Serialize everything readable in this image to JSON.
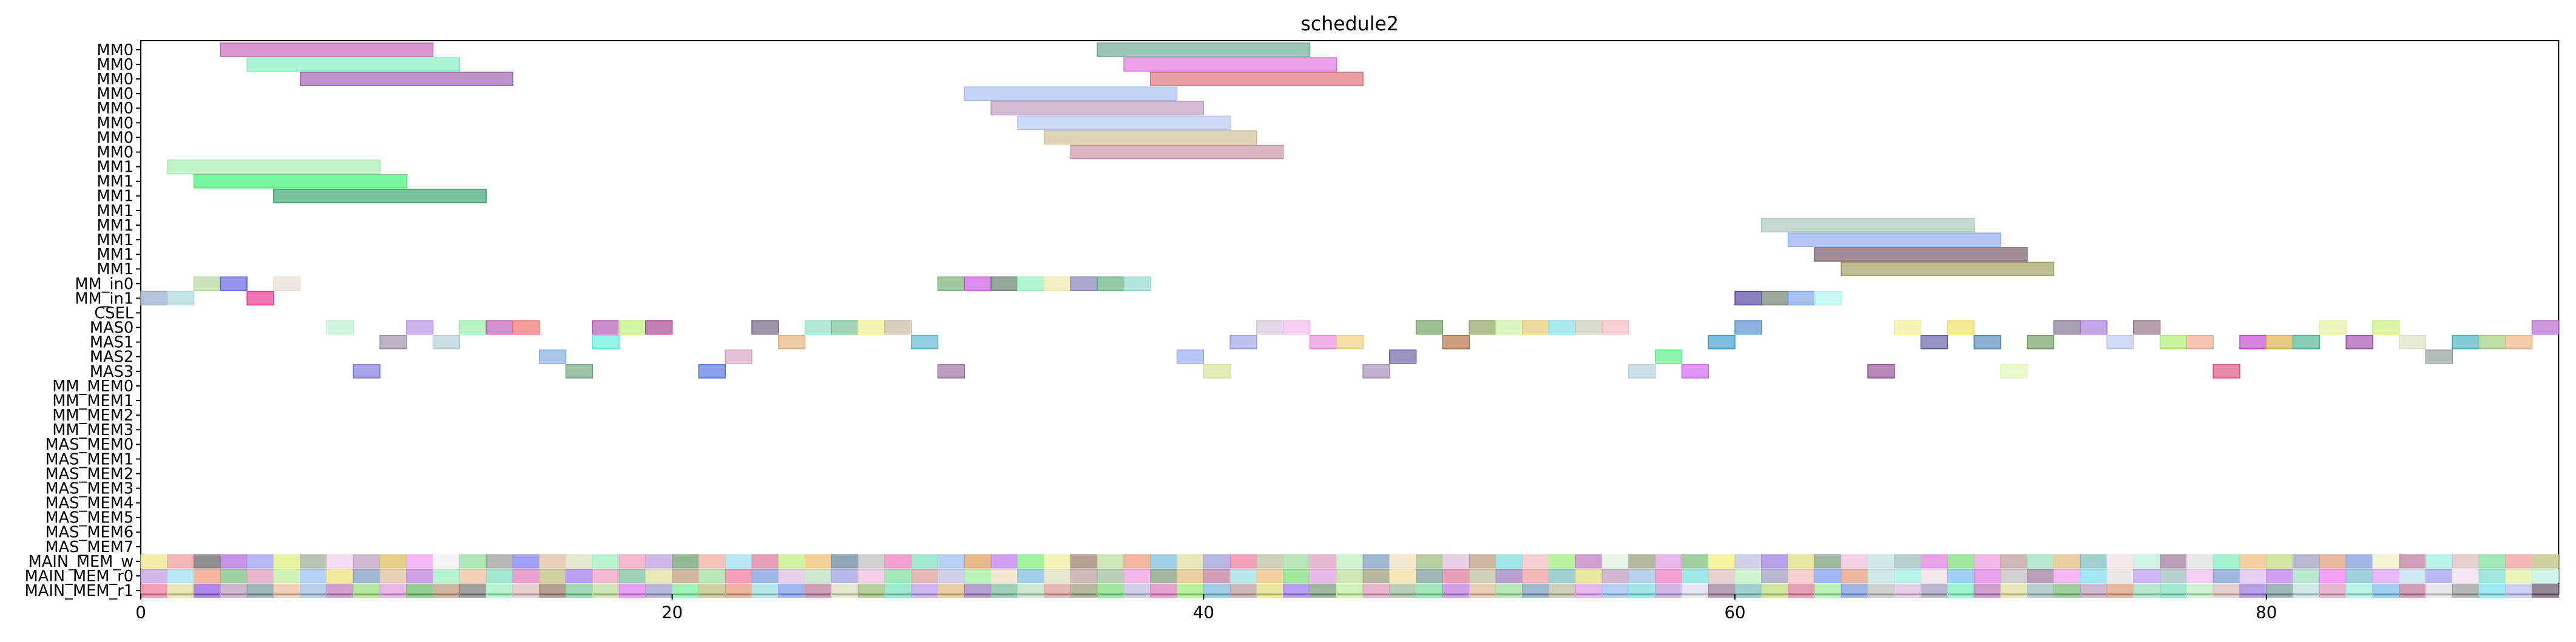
{
  "chart_data": {
    "type": "gantt",
    "title": "schedule2",
    "xlabel": "",
    "ylabel": "",
    "xlim": [
      0,
      91
    ],
    "xticks": [
      0,
      20,
      40,
      60,
      80
    ],
    "grid": false,
    "rows": [
      "MM0",
      "MM0",
      "MM0",
      "MM0",
      "MM0",
      "MM0",
      "MM0",
      "MM0",
      "MM1",
      "MM1",
      "MM1",
      "MM1",
      "MM1",
      "MM1",
      "MM1",
      "MM1",
      "MM_in0",
      "MM_in1",
      "CSEL",
      "MAS0",
      "MAS1",
      "MAS2",
      "MAS3",
      "MM_MEM0",
      "MM_MEM1",
      "MM_MEM2",
      "MM_MEM3",
      "MAS_MEM0",
      "MAS_MEM1",
      "MAS_MEM2",
      "MAS_MEM3",
      "MAS_MEM4",
      "MAS_MEM5",
      "MAS_MEM6",
      "MAS_MEM7",
      "MAIN_MEM_w",
      "MAIN_MEM_r0",
      "MAIN_MEM_r1"
    ],
    "tasks": [
      {
        "row": 0,
        "start": 3,
        "end": 11,
        "color": "#c25fb6"
      },
      {
        "row": 1,
        "start": 4,
        "end": 12,
        "color": "#7ef0bf"
      },
      {
        "row": 2,
        "start": 6,
        "end": 14,
        "color": "#9a5aac"
      },
      {
        "row": 8,
        "start": 1,
        "end": 9,
        "color": "#9cf0a8"
      },
      {
        "row": 9,
        "start": 2,
        "end": 10,
        "color": "#2ff56a"
      },
      {
        "row": 10,
        "start": 5,
        "end": 13,
        "color": "#2fa066"
      },
      {
        "row": 0,
        "start": 36,
        "end": 44,
        "color": "#6aa890"
      },
      {
        "row": 1,
        "start": 37,
        "end": 45,
        "color": "#e46ee0"
      },
      {
        "row": 2,
        "start": 38,
        "end": 46,
        "color": "#df6c74"
      },
      {
        "row": 3,
        "start": 31,
        "end": 39,
        "color": "#a2bcf2"
      },
      {
        "row": 4,
        "start": 32,
        "end": 40,
        "color": "#c09ac0"
      },
      {
        "row": 5,
        "start": 33,
        "end": 41,
        "color": "#b6c6f2"
      },
      {
        "row": 6,
        "start": 34,
        "end": 42,
        "color": "#cdbc8e"
      },
      {
        "row": 7,
        "start": 35,
        "end": 43,
        "color": "#c88ea0"
      },
      {
        "row": 12,
        "start": 61,
        "end": 69,
        "color": "#a8c6b8"
      },
      {
        "row": 13,
        "start": 62,
        "end": 70,
        "color": "#8eaaf0"
      },
      {
        "row": 14,
        "start": 63,
        "end": 71,
        "color": "#6e4e60"
      },
      {
        "row": 15,
        "start": 64,
        "end": 72,
        "color": "#9c9c5e"
      },
      {
        "row": 16,
        "start": 2,
        "end": 3,
        "color": "#b2d494"
      },
      {
        "row": 16,
        "start": 3,
        "end": 4,
        "color": "#5a5ae8"
      },
      {
        "row": 16,
        "start": 5,
        "end": 6,
        "color": "#e6dccc"
      },
      {
        "row": 16,
        "start": 30,
        "end": 31,
        "color": "#6eaa6a"
      },
      {
        "row": 16,
        "start": 31,
        "end": 32,
        "color": "#c64ee6"
      },
      {
        "row": 16,
        "start": 32,
        "end": 33,
        "color": "#5a7a64"
      },
      {
        "row": 16,
        "start": 33,
        "end": 34,
        "color": "#8ef0b8"
      },
      {
        "row": 16,
        "start": 34,
        "end": 35,
        "color": "#f0e6a4"
      },
      {
        "row": 16,
        "start": 35,
        "end": 36,
        "color": "#7a78b0"
      },
      {
        "row": 16,
        "start": 36,
        "end": 37,
        "color": "#5aaa76"
      },
      {
        "row": 16,
        "start": 37,
        "end": 38,
        "color": "#8ad6c8"
      },
      {
        "row": 17,
        "start": 0,
        "end": 1,
        "color": "#94a6cc"
      },
      {
        "row": 17,
        "start": 1,
        "end": 2,
        "color": "#a8d6dc"
      },
      {
        "row": 17,
        "start": 4,
        "end": 5,
        "color": "#ee2e8e"
      },
      {
        "row": 17,
        "start": 60,
        "end": 61,
        "color": "#4e3a9c"
      },
      {
        "row": 17,
        "start": 61,
        "end": 62,
        "color": "#6a7a6a"
      },
      {
        "row": 17,
        "start": 62,
        "end": 63,
        "color": "#7aa0e6"
      },
      {
        "row": 17,
        "start": 63,
        "end": 64,
        "color": "#aef4ec"
      },
      {
        "row": 19,
        "start": 7,
        "end": 8,
        "color": "#b6f0d0"
      },
      {
        "row": 19,
        "start": 10,
        "end": 11,
        "color": "#b58ae6"
      },
      {
        "row": 19,
        "start": 12,
        "end": 13,
        "color": "#8ef0a0"
      },
      {
        "row": 19,
        "start": 13,
        "end": 14,
        "color": "#c058b4"
      },
      {
        "row": 19,
        "start": 14,
        "end": 15,
        "color": "#f06a6a"
      },
      {
        "row": 19,
        "start": 17,
        "end": 18,
        "color": "#b050b0"
      },
      {
        "row": 19,
        "start": 18,
        "end": 19,
        "color": "#b8f070"
      },
      {
        "row": 19,
        "start": 19,
        "end": 20,
        "color": "#a23a8c"
      },
      {
        "row": 19,
        "start": 23,
        "end": 24,
        "color": "#6a5a7a"
      },
      {
        "row": 19,
        "start": 25,
        "end": 26,
        "color": "#8ae0c0"
      },
      {
        "row": 19,
        "start": 26,
        "end": 27,
        "color": "#6ebe8e"
      },
      {
        "row": 19,
        "start": 27,
        "end": 28,
        "color": "#eef088"
      },
      {
        "row": 19,
        "start": 28,
        "end": 29,
        "color": "#c8b69c"
      },
      {
        "row": 19,
        "start": 42,
        "end": 43,
        "color": "#d2c2d6"
      },
      {
        "row": 19,
        "start": 43,
        "end": 44,
        "color": "#f4b6ec"
      },
      {
        "row": 19,
        "start": 48,
        "end": 49,
        "color": "#6aa05a"
      },
      {
        "row": 19,
        "start": 50,
        "end": 51,
        "color": "#8aa058"
      },
      {
        "row": 19,
        "start": 51,
        "end": 52,
        "color": "#c8f0a0"
      },
      {
        "row": 19,
        "start": 52,
        "end": 53,
        "color": "#e6c86a"
      },
      {
        "row": 19,
        "start": 53,
        "end": 54,
        "color": "#7ee0e6"
      },
      {
        "row": 19,
        "start": 54,
        "end": 55,
        "color": "#c8ccb4"
      },
      {
        "row": 19,
        "start": 55,
        "end": 56,
        "color": "#f4b6c0"
      },
      {
        "row": 19,
        "start": 60,
        "end": 61,
        "color": "#4e8ad0"
      },
      {
        "row": 19,
        "start": 66,
        "end": 67,
        "color": "#f2ec8e"
      },
      {
        "row": 19,
        "start": 68,
        "end": 69,
        "color": "#f0e060"
      },
      {
        "row": 19,
        "start": 72,
        "end": 73,
        "color": "#7a6e8a"
      },
      {
        "row": 19,
        "start": 73,
        "end": 74,
        "color": "#a67ae0"
      },
      {
        "row": 19,
        "start": 75,
        "end": 76,
        "color": "#8e6e7e"
      },
      {
        "row": 19,
        "start": 82,
        "end": 83,
        "color": "#e6f09a"
      },
      {
        "row": 19,
        "start": 84,
        "end": 85,
        "color": "#c8f070"
      },
      {
        "row": 19,
        "start": 90,
        "end": 91,
        "color": "#b060c8"
      },
      {
        "row": 20,
        "start": 9,
        "end": 10,
        "color": "#9a8aa6"
      },
      {
        "row": 20,
        "start": 11,
        "end": 12,
        "color": "#a8d0d8"
      },
      {
        "row": 20,
        "start": 17,
        "end": 18,
        "color": "#5af0e0"
      },
      {
        "row": 20,
        "start": 24,
        "end": 25,
        "color": "#e6b07a"
      },
      {
        "row": 20,
        "start": 29,
        "end": 30,
        "color": "#58b4d0"
      },
      {
        "row": 20,
        "start": 41,
        "end": 42,
        "color": "#9aa0e8"
      },
      {
        "row": 20,
        "start": 44,
        "end": 45,
        "color": "#e688d8"
      },
      {
        "row": 20,
        "start": 45,
        "end": 46,
        "color": "#f0ce7a"
      },
      {
        "row": 20,
        "start": 49,
        "end": 50,
        "color": "#b06c3a"
      },
      {
        "row": 20,
        "start": 59,
        "end": 60,
        "color": "#3a9ad0"
      },
      {
        "row": 20,
        "start": 67,
        "end": 68,
        "color": "#5a5aa0"
      },
      {
        "row": 20,
        "start": 69,
        "end": 70,
        "color": "#4a86b0"
      },
      {
        "row": 20,
        "start": 71,
        "end": 72,
        "color": "#6a9a5a"
      },
      {
        "row": 20,
        "start": 74,
        "end": 75,
        "color": "#b8c8f0"
      },
      {
        "row": 20,
        "start": 76,
        "end": 77,
        "color": "#a6f06a"
      },
      {
        "row": 20,
        "start": 77,
        "end": 78,
        "color": "#f0a68a"
      },
      {
        "row": 20,
        "start": 79,
        "end": 80,
        "color": "#c040d0"
      },
      {
        "row": 20,
        "start": 80,
        "end": 81,
        "color": "#d8b040"
      },
      {
        "row": 20,
        "start": 81,
        "end": 82,
        "color": "#4ab090"
      },
      {
        "row": 20,
        "start": 83,
        "end": 84,
        "color": "#a04aa8"
      },
      {
        "row": 20,
        "start": 85,
        "end": 86,
        "color": "#e0e0c0"
      },
      {
        "row": 20,
        "start": 87,
        "end": 88,
        "color": "#40b0c0"
      },
      {
        "row": 20,
        "start": 88,
        "end": 89,
        "color": "#9ad07a"
      },
      {
        "row": 20,
        "start": 89,
        "end": 90,
        "color": "#f0b080"
      },
      {
        "row": 21,
        "start": 15,
        "end": 16,
        "color": "#80a8e0"
      },
      {
        "row": 21,
        "start": 22,
        "end": 23,
        "color": "#d8a0c0"
      },
      {
        "row": 21,
        "start": 39,
        "end": 40,
        "color": "#90a8f0"
      },
      {
        "row": 21,
        "start": 47,
        "end": 48,
        "color": "#6a5aa0"
      },
      {
        "row": 21,
        "start": 57,
        "end": 58,
        "color": "#50f080"
      },
      {
        "row": 21,
        "start": 86,
        "end": 87,
        "color": "#8a9a9a"
      },
      {
        "row": 22,
        "start": 8,
        "end": 9,
        "color": "#7a70d8"
      },
      {
        "row": 22,
        "start": 16,
        "end": 17,
        "color": "#6aa07a"
      },
      {
        "row": 22,
        "start": 21,
        "end": 22,
        "color": "#4a70e0"
      },
      {
        "row": 22,
        "start": 30,
        "end": 31,
        "color": "#9a6aa0"
      },
      {
        "row": 22,
        "start": 40,
        "end": 41,
        "color": "#d8e090"
      },
      {
        "row": 22,
        "start": 46,
        "end": 47,
        "color": "#a088b8"
      },
      {
        "row": 22,
        "start": 56,
        "end": 57,
        "color": "#b0d0d8"
      },
      {
        "row": 22,
        "start": 58,
        "end": 59,
        "color": "#d060f0"
      },
      {
        "row": 22,
        "start": 65,
        "end": 66,
        "color": "#904a90"
      },
      {
        "row": 22,
        "start": 70,
        "end": 71,
        "color": "#e0f8b0"
      },
      {
        "row": 22,
        "start": 78,
        "end": 79,
        "color": "#e04a7a"
      }
    ]
  },
  "main_mem_colors": {
    "w": [
      "#f0e68c",
      "#f0a0a0",
      "#6a6a6a",
      "#b070e0",
      "#a0a0f0",
      "#e0f080",
      "#a0b0a0",
      "#f0d0f0",
      "#c0a0c0",
      "#e0c060",
      "#f0a0f0",
      "#f0f0f0",
      "#90e0a0",
      "#a0a0a0",
      "#8080f0",
      "#e0c0a0",
      "#e0e0c0",
      "#a0f0c0",
      "#f0a0c0",
      "#c0a0e0",
      "#70a070",
      "#f0b0a0",
      "#a0e0f0",
      "#e080a0",
      "#c0f080",
      "#f0c070",
      "#6a8aa0",
      "#c0c0c0",
      "#f080c0",
      "#80e0c0",
      "#a0c0f0",
      "#e0a060",
      "#c080f0",
      "#80f080",
      "#f0f0a0",
      "#a08070",
      "#c0e0a0",
      "#f0a080",
      "#80c0e0",
      "#e0e0a0",
      "#a0a0e0",
      "#f080a0",
      "#c0c0a0",
      "#a0e0a0",
      "#e0a0c0",
      "#c0f0c0",
      "#80a0c0",
      "#f0e0c0",
      "#a0c080",
      "#e0c0e0",
      "#c0a080",
      "#80e0e0",
      "#f0c0c0",
      "#a0f080",
      "#c080c0",
      "#e0f0e0",
      "#a0a080",
      "#e0a0e0",
      "#80c080",
      "#f0f080",
      "#c0c0e0",
      "#a080e0",
      "#e0e080",
      "#80a080",
      "#f0c0e0",
      "#c0e0e0",
      "#a0c0c0",
      "#e080e0",
      "#80e080",
      "#f0a0e0",
      "#c0a0a0",
      "#a0e0c0",
      "#e0c080",
      "#80c0c0",
      "#f0e0e0",
      "#c0f0e0",
      "#a080a0",
      "#e0e0e0",
      "#80f0c0",
      "#f0c080",
      "#c0e080",
      "#a0a0c0",
      "#e0a080",
      "#80a0e0",
      "#f0f0c0",
      "#c080a0",
      "#a0f0e0",
      "#e0c0c0",
      "#80e0a0",
      "#f0a0a0",
      "#c0c080"
    ],
    "r0": [
      "#c0a0e0",
      "#a0e0f0",
      "#f0a080",
      "#80c080",
      "#e0a0c0",
      "#c0f0a0",
      "#a0c0f0",
      "#f0e080",
      "#80a0c0",
      "#e0c0a0",
      "#c080e0",
      "#a0f0c0",
      "#f0c0a0",
      "#80e0c0",
      "#e080c0",
      "#c0c080",
      "#a080f0",
      "#f0a0c0",
      "#80c0a0",
      "#e0e0a0",
      "#c0a080",
      "#a0e0a0",
      "#f080a0",
      "#80a0e0",
      "#e0c0e0",
      "#c0e0c0",
      "#a0a0e0",
      "#f0c0e0",
      "#80e0a0",
      "#e0a0a0",
      "#c0c0e0",
      "#a0f0a0",
      "#f0e0c0",
      "#80c0e0",
      "#e0e0c0",
      "#c0a0a0",
      "#a0c0a0",
      "#f0a0e0",
      "#80a080",
      "#e0c080",
      "#c080a0",
      "#a0e0e0",
      "#f0c080",
      "#80e080",
      "#e0a0e0",
      "#c0e0a0",
      "#a0a080",
      "#f0e0a0",
      "#80a0a0",
      "#e080a0",
      "#c0c0a0",
      "#a080c0",
      "#f0a0a0",
      "#80c0c0",
      "#e0e080",
      "#c0a0c0",
      "#a0c0e0",
      "#f080c0",
      "#80e0e0",
      "#e0c0c0",
      "#c0f0c0",
      "#a0a0c0",
      "#f0c0c0",
      "#80a0f0",
      "#e0a080",
      "#c0e0e0",
      "#a0f0e0",
      "#f0e0e0",
      "#80c0f0",
      "#e080e0",
      "#c0c0c0",
      "#a080a0",
      "#f0a0f0",
      "#80e0f0",
      "#e0e0e0",
      "#c0a0f0",
      "#a0c0c0",
      "#f0c0f0",
      "#80a0d0",
      "#e0c0f0",
      "#c080f0",
      "#a0e0c0",
      "#f080f0",
      "#80c0d0",
      "#e0a0f0",
      "#c0e0f0",
      "#a0a0f0",
      "#f0e0f0",
      "#80e0d0",
      "#e0f0a0",
      "#c0f0e0"
    ],
    "r1": [
      "#f080a0",
      "#e0e0a0",
      "#9060e0",
      "#c0a0c0",
      "#80a0a0",
      "#f0c0a0",
      "#a0c0e0",
      "#c080c0",
      "#a0e080",
      "#e0a0e0",
      "#70c070",
      "#c0a080",
      "#808080",
      "#a0f0c0",
      "#e0c0c0",
      "#a08070",
      "#80d0a0",
      "#c0e0a0",
      "#e080f0",
      "#a0a0d0",
      "#80f0a0",
      "#c0c080",
      "#e0a080",
      "#a0e0e0",
      "#80a0f0",
      "#c080a0",
      "#e0e0c0",
      "#a0c080",
      "#80e0c0",
      "#c0a0f0",
      "#e0c080",
      "#a080c0",
      "#80c0a0",
      "#c0e0c0",
      "#e0a0a0",
      "#a0a080",
      "#80e080",
      "#c0c0e0",
      "#e080c0",
      "#a0f080",
      "#80c0e0",
      "#c0a0a0",
      "#e0e080",
      "#a080f0",
      "#80a080",
      "#c0f0a0",
      "#e0a0c0",
      "#a0c0a0",
      "#80e0a0",
      "#c080e0",
      "#e0c0a0",
      "#a0e0a0",
      "#80a0c0",
      "#c0c0a0",
      "#e0a0f0",
      "#a0c0f0",
      "#80e0e0",
      "#c0a0e0",
      "#e0e0f0",
      "#a080a0",
      "#80c0c0",
      "#c0e080",
      "#e080a0",
      "#a0f0a0",
      "#80a0e0",
      "#c0c0c0",
      "#e0c0e0",
      "#a0a0c0",
      "#80f0c0",
      "#c080c0",
      "#e0e0a0",
      "#a0c0c0",
      "#80c080",
      "#c0a0c0",
      "#e0a080",
      "#a0e0c0",
      "#80e0c0",
      "#c0f0c0",
      "#e0c0c0",
      "#a080e0",
      "#80a0a0",
      "#c0e0e0",
      "#e0a0c0",
      "#a0f0e0",
      "#80c0f0",
      "#c080a0",
      "#e0e0e0",
      "#a0a0a0",
      "#80e0f0",
      "#c0c0f0",
      "#706070"
    ]
  }
}
